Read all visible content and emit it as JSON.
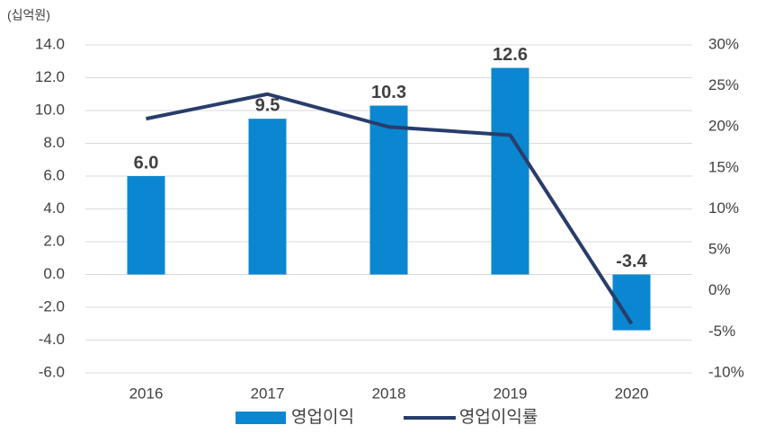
{
  "chart_data": {
    "type": "bar",
    "unit_label": "(십억원)",
    "categories": [
      "2016",
      "2017",
      "2018",
      "2019",
      "2020"
    ],
    "series": [
      {
        "name": "영업이익",
        "type": "bar",
        "color": "#0a87d0",
        "values": [
          6.0,
          9.5,
          10.3,
          12.6,
          -3.4
        ],
        "value_labels": [
          "6.0",
          "9.5",
          "10.3",
          "12.6",
          "-3.4"
        ]
      },
      {
        "name": "영업이익률",
        "type": "line",
        "axis": "y2",
        "color": "#283d6b",
        "values": [
          21,
          24,
          20,
          19,
          -4
        ]
      }
    ],
    "ylim": [
      -6,
      14
    ],
    "yticks": [
      {
        "value": -6,
        "label": "-6.0"
      },
      {
        "value": -4,
        "label": "-4.0"
      },
      {
        "value": -2,
        "label": "-2.0"
      },
      {
        "value": 0,
        "label": "0.0"
      },
      {
        "value": 2,
        "label": "2.0"
      },
      {
        "value": 4,
        "label": "4.0"
      },
      {
        "value": 6,
        "label": "6.0"
      },
      {
        "value": 8,
        "label": "8.0"
      },
      {
        "value": 10,
        "label": "10.0"
      },
      {
        "value": 12,
        "label": "12.0"
      },
      {
        "value": 14,
        "label": "14.0"
      }
    ],
    "y2lim": [
      -10,
      30
    ],
    "y2ticks": [
      {
        "value": -10,
        "label": "-10%"
      },
      {
        "value": -5,
        "label": "-5%"
      },
      {
        "value": 0,
        "label": "0%"
      },
      {
        "value": 5,
        "label": "5%"
      },
      {
        "value": 10,
        "label": "10%"
      },
      {
        "value": 15,
        "label": "15%"
      },
      {
        "value": 20,
        "label": "20%"
      },
      {
        "value": 25,
        "label": "25%"
      },
      {
        "value": 30,
        "label": "30%"
      }
    ],
    "grid": true
  }
}
